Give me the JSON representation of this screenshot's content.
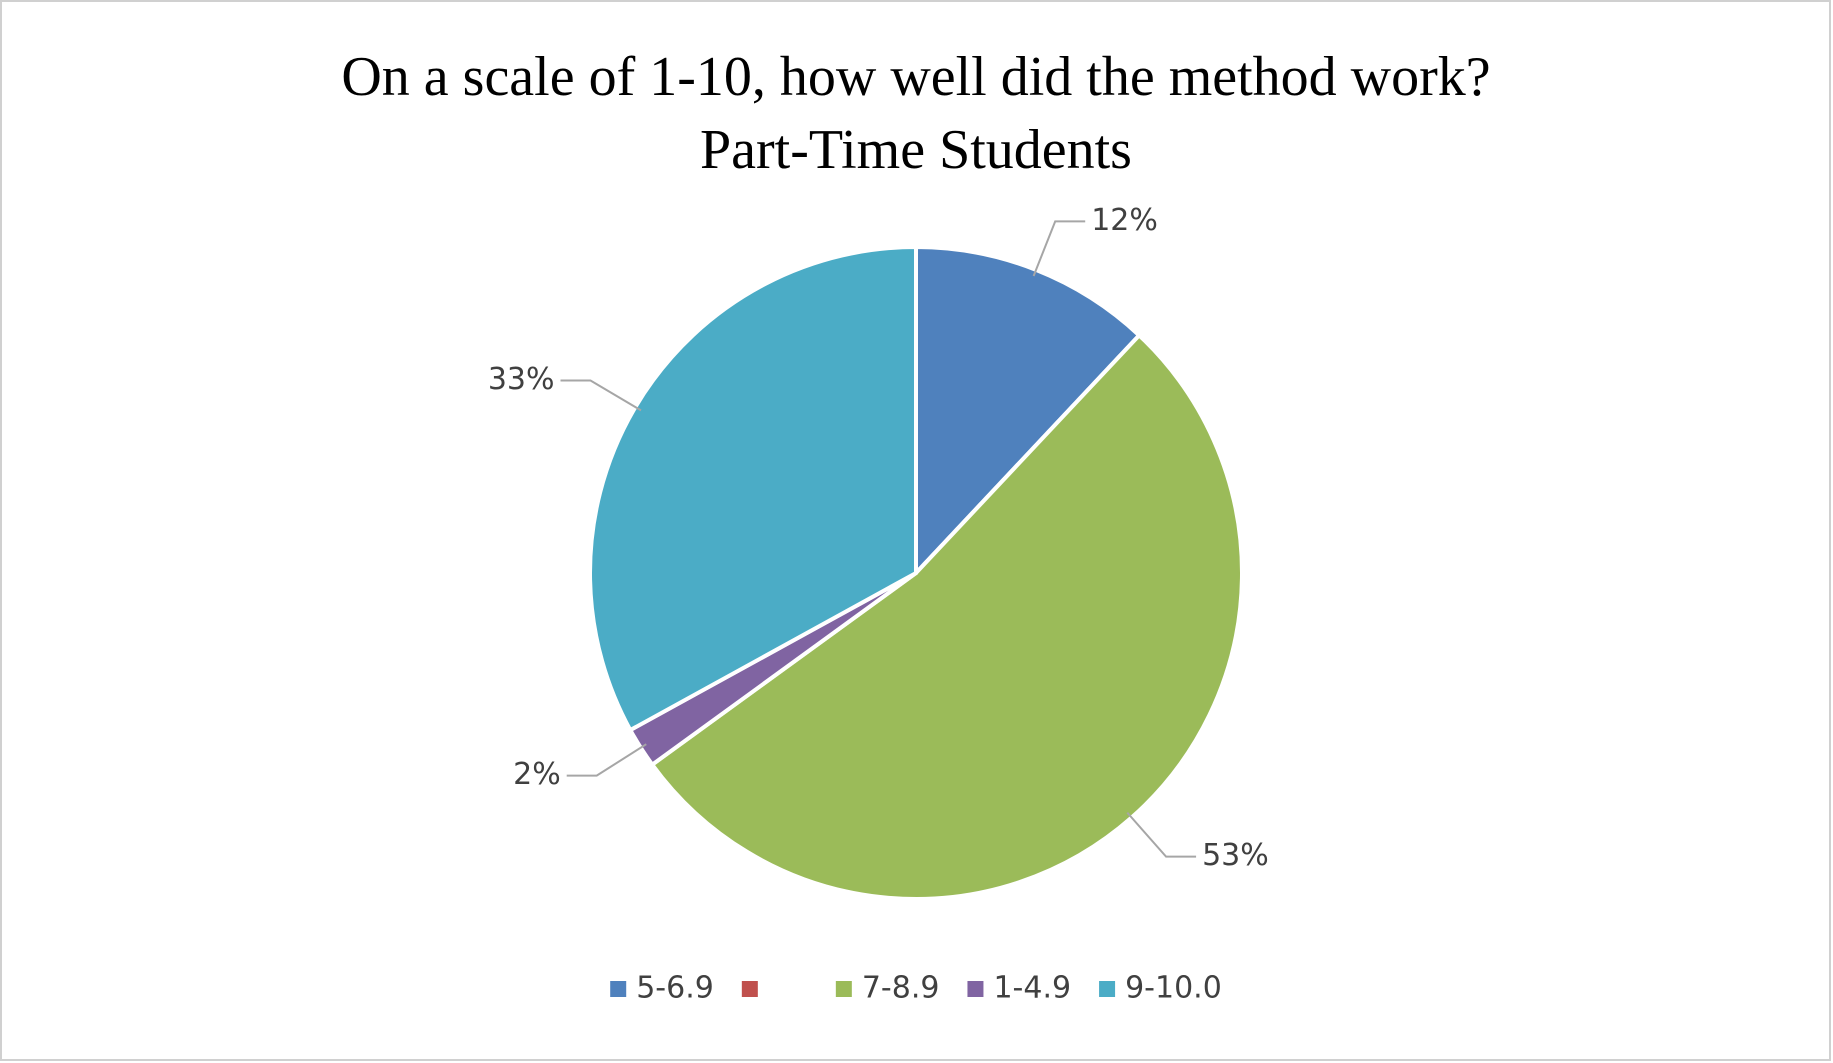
{
  "chart_data": {
    "type": "pie",
    "title": "On a scale of 1-10, how well did the method work?",
    "subtitle": "Part-Time Students",
    "categories": [
      "5-6.9",
      null,
      "7-8.9",
      "1-4.9",
      "9-10.0"
    ],
    "values": [
      12,
      0,
      53,
      2,
      33
    ],
    "value_labels": [
      "12%",
      null,
      "53%",
      "2%",
      "33%"
    ],
    "colors": [
      "#4f81bd",
      "#c0504d",
      "#9bbb59",
      "#8064a2",
      "#4bacc6"
    ],
    "legend": "bottom"
  }
}
